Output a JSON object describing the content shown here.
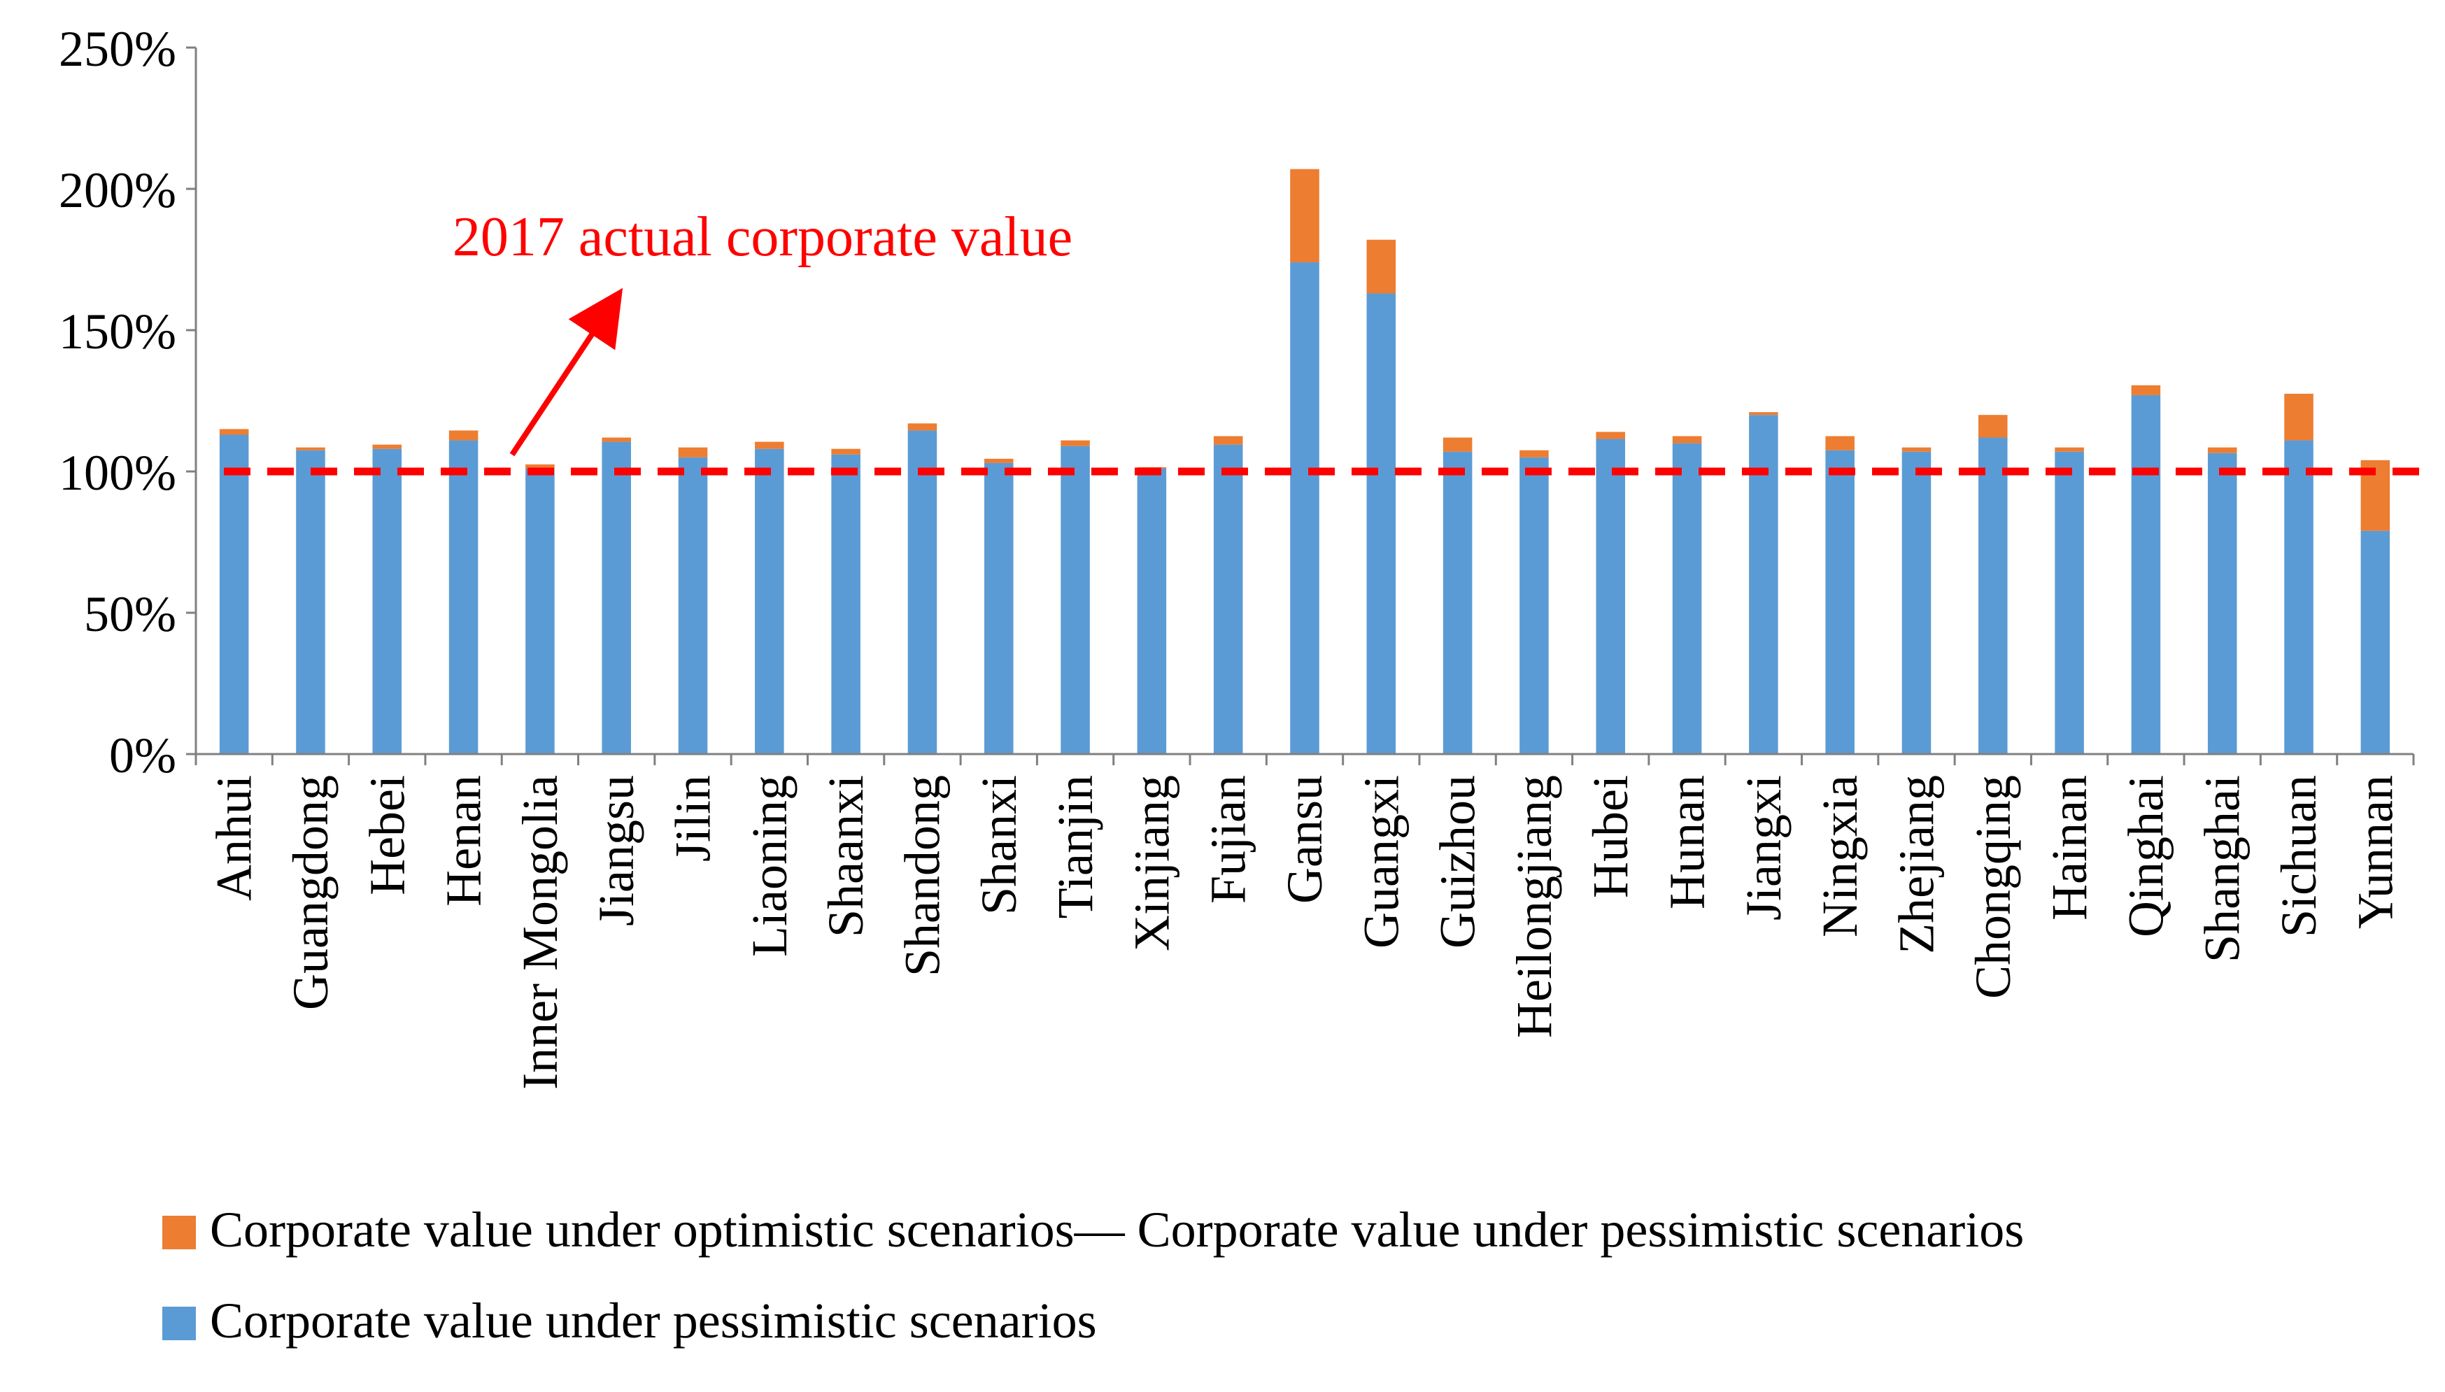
{
  "chart_data": {
    "type": "bar",
    "stacked": true,
    "title": "",
    "xlabel": "",
    "ylabel": "",
    "ylim": [
      0,
      250
    ],
    "yticks": [
      "0%",
      "50%",
      "100%",
      "150%",
      "200%",
      "250%"
    ],
    "y_unit": "%",
    "grid": false,
    "legend_position": "bottom-left",
    "categories": [
      "Anhui",
      "Guangdong",
      "Hebei",
      "Henan",
      "Inner Mongolia",
      "Jiangsu",
      "Jilin",
      "Liaoning",
      "Shaanxi",
      "Shandong",
      "Shanxi",
      "Tianjin",
      "Xinjiang",
      "Fujian",
      "Gansu",
      "Guangxi",
      "Guizhou",
      "Heilongjiang",
      "Hubei",
      "Hunan",
      "Jiangxi",
      "Ningxia",
      "Zhejiang",
      "Chongqing",
      "Hainan",
      "Qinghai",
      "Shanghai",
      "Sichuan",
      "Yunnan"
    ],
    "series": [
      {
        "name": "Corporate value under pessimistic scenarios",
        "color": "#5B9BD5",
        "values": [
          113,
          107.5,
          108,
          111,
          101,
          110.5,
          105,
          108,
          106,
          114.5,
          103,
          109,
          101,
          109.5,
          174,
          163,
          107,
          105,
          111.5,
          110,
          120,
          107.5,
          107,
          112,
          107,
          127,
          106.5,
          111,
          79
        ]
      },
      {
        "name": "Corporate value under optimistic scenarios— Corporate value under pessimistic scenarios",
        "color": "#ED7D31",
        "values": [
          2,
          1,
          1.5,
          3.5,
          1.5,
          1.5,
          3.5,
          2.5,
          2,
          2.5,
          1.5,
          2,
          0.5,
          3,
          33,
          19,
          5,
          2.5,
          2.5,
          2.5,
          1,
          5,
          1.5,
          8,
          1.5,
          3.5,
          2,
          16.5,
          25
        ]
      }
    ],
    "reference_line": {
      "value": 100,
      "color": "#FF0000",
      "style": "dashed"
    },
    "annotation": {
      "text": "2017 actual corporate value",
      "color": "#FF0000"
    }
  }
}
